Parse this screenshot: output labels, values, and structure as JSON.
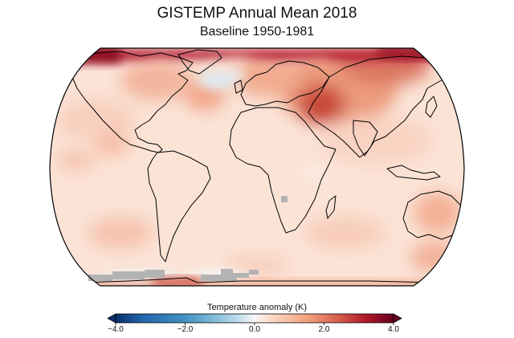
{
  "title": "GISTEMP Annual Mean 2018",
  "subtitle": "Baseline 1950-1981",
  "colorbar": {
    "label": "Temperature anomaly (K)",
    "ticks": [
      "−4.0",
      "−2.0",
      "0.0",
      "2.0",
      "4.0"
    ],
    "range": [
      -4.0,
      4.0
    ],
    "extend": "both",
    "colors": [
      "#08306b",
      "#2166ac",
      "#4393c3",
      "#92c5de",
      "#d1e5f0",
      "#f7f7f7",
      "#fddbc7",
      "#f4a582",
      "#d6604d",
      "#b2182b",
      "#67001f"
    ]
  },
  "map": {
    "projection": "Robinson",
    "missing_color": "#b3b3b3",
    "land_outline_color": "#000000"
  }
}
